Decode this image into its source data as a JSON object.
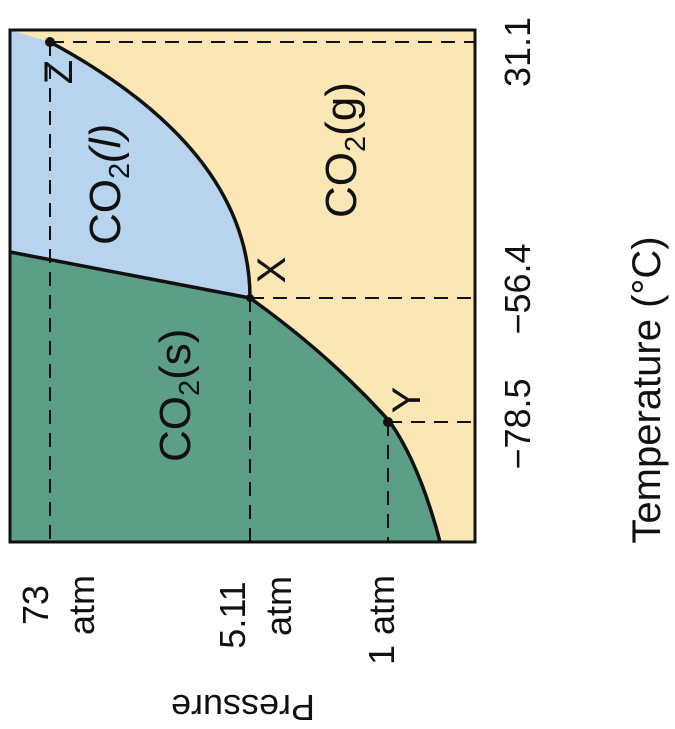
{
  "regions": {
    "solid": "CO",
    "solid_sub": "2",
    "solid_phase": "(s)",
    "liquid": "CO",
    "liquid_sub": "2",
    "liquid_phase": "(l)",
    "gas": "CO",
    "gas_sub": "2",
    "gas_phase": "(g)"
  },
  "points": {
    "z": "Z",
    "x": "X",
    "y": "Y"
  },
  "pressure_ticks": {
    "p73_value": "73",
    "p73_unit": "atm",
    "p511_value": "5.11",
    "p511_unit": "atm",
    "p1": "1 atm"
  },
  "temperature_ticks": {
    "t311": "31.1",
    "t564": "−56.4",
    "t785": "−78.5"
  },
  "axes": {
    "pressure_label": "Pressure",
    "temperature_label": "Temperature (°C)"
  },
  "colors": {
    "solid": "#5c9e86",
    "liquid": "#b7d3ee",
    "gas": "#fae7b5",
    "lines": "#111111"
  }
}
